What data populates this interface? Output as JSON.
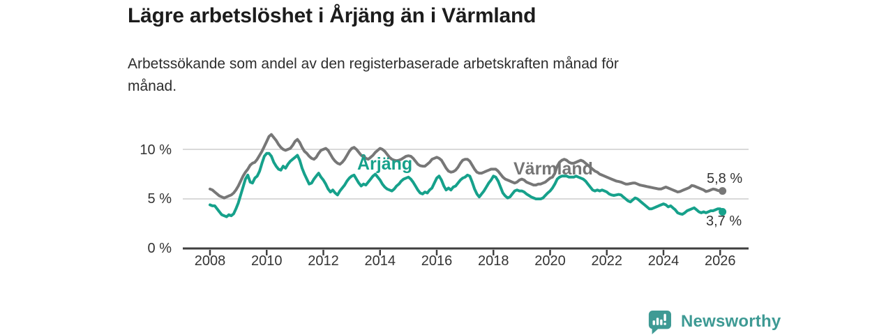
{
  "header": {
    "title": "Lägre arbetslöshet i Årjäng än i Värmland",
    "subtitle_lines": [
      "Arbetssökande som andel av den registerbaserade arbetskraften månad för",
      "månad."
    ]
  },
  "colors": {
    "arjang_line": "#16a18b",
    "varmland_line": "#777777",
    "gridline": "#d9d9d9",
    "axis": "#3f3f3f",
    "text": "#333333",
    "title_text": "#1c1c1c",
    "logo_teal": "#3e9a94"
  },
  "chart_data": {
    "type": "line",
    "title": "Lägre arbetslöshet i Årjäng än i Värmland",
    "subtitle": "Arbetssökande som andel av den registerbaserade arbetskraften månad för månad.",
    "x_unit": "month",
    "x_start": "2008-01",
    "x_end": "2026-02",
    "x_ticks": [
      "2008",
      "2010",
      "2012",
      "2014",
      "2016",
      "2018",
      "2020",
      "2022",
      "2024",
      "2026"
    ],
    "y_ticks": [
      "0 %",
      "5 %",
      "10 %"
    ],
    "ylim": [
      0,
      12.5
    ],
    "grid": "horizontal",
    "legend": "inline-labels",
    "series": [
      {
        "name": "Värmland",
        "color": "#777777",
        "end_label": "5,8 %",
        "end_value": 5.8,
        "values": [
          6.0,
          5.9,
          5.7,
          5.5,
          5.3,
          5.2,
          5.1,
          5.2,
          5.3,
          5.4,
          5.6,
          5.9,
          6.3,
          6.8,
          7.3,
          7.7,
          8.0,
          8.4,
          8.6,
          8.7,
          9.0,
          9.4,
          9.8,
          10.3,
          10.8,
          11.3,
          11.5,
          11.2,
          10.9,
          10.5,
          10.2,
          10.0,
          9.9,
          10.0,
          10.1,
          10.4,
          10.8,
          11.0,
          10.7,
          10.2,
          9.8,
          9.6,
          9.3,
          9.1,
          9.0,
          9.2,
          9.6,
          9.9,
          10.0,
          10.1,
          9.9,
          9.5,
          9.1,
          8.8,
          8.6,
          8.5,
          8.7,
          9.0,
          9.4,
          9.8,
          10.1,
          10.2,
          10.0,
          9.7,
          9.4,
          9.3,
          9.1,
          9.0,
          9.2,
          9.4,
          9.7,
          9.9,
          10.1,
          10.0,
          9.8,
          9.5,
          9.2,
          9.0,
          8.9,
          8.85,
          8.9,
          9.0,
          9.15,
          9.3,
          9.35,
          9.3,
          9.1,
          8.8,
          8.5,
          8.35,
          8.3,
          8.3,
          8.5,
          8.7,
          9.0,
          9.1,
          9.2,
          9.1,
          8.9,
          8.5,
          8.1,
          7.8,
          7.7,
          7.75,
          7.9,
          8.2,
          8.6,
          8.9,
          9.0,
          9.0,
          8.8,
          8.4,
          8.0,
          7.7,
          7.6,
          7.6,
          7.7,
          7.8,
          7.9,
          8.0,
          8.0,
          8.0,
          7.8,
          7.5,
          7.2,
          7.0,
          6.9,
          6.8,
          6.7,
          6.6,
          6.7,
          6.9,
          7.0,
          6.9,
          6.7,
          6.6,
          6.5,
          6.4,
          6.4,
          6.5,
          6.5,
          6.6,
          6.7,
          6.9,
          7.1,
          7.2,
          7.6,
          8.3,
          8.7,
          8.9,
          9.0,
          8.9,
          8.7,
          8.6,
          8.6,
          8.7,
          8.8,
          8.9,
          8.8,
          8.6,
          8.4,
          8.2,
          8.0,
          7.8,
          7.7,
          7.5,
          7.4,
          7.3,
          7.2,
          7.1,
          7.0,
          6.9,
          6.8,
          6.75,
          6.7,
          6.6,
          6.5,
          6.5,
          6.55,
          6.6,
          6.6,
          6.5,
          6.4,
          6.35,
          6.3,
          6.25,
          6.2,
          6.15,
          6.1,
          6.05,
          6.0,
          6.0,
          6.1,
          6.2,
          6.1,
          6.0,
          5.9,
          5.8,
          5.7,
          5.75,
          5.85,
          5.95,
          6.05,
          6.15,
          6.35,
          6.3,
          6.2,
          6.1,
          6.0,
          5.9,
          5.75,
          5.8,
          5.9,
          6.0,
          5.95,
          5.85,
          5.8,
          5.8
        ]
      },
      {
        "name": "Årjäng",
        "color": "#16a18b",
        "end_label": "3,7 %",
        "end_value": 3.7,
        "values": [
          4.4,
          4.3,
          4.3,
          4.0,
          3.7,
          3.4,
          3.3,
          3.2,
          3.4,
          3.3,
          3.5,
          4.0,
          4.6,
          5.4,
          6.2,
          7.0,
          7.4,
          6.7,
          6.6,
          7.1,
          7.3,
          7.8,
          8.6,
          9.3,
          9.6,
          9.6,
          9.3,
          8.7,
          8.3,
          8.0,
          7.9,
          8.3,
          8.1,
          8.5,
          8.8,
          9.0,
          9.2,
          9.4,
          8.9,
          8.1,
          7.5,
          7.0,
          6.5,
          6.6,
          7.0,
          7.3,
          7.6,
          7.2,
          6.9,
          6.5,
          6.0,
          5.7,
          5.9,
          5.6,
          5.4,
          5.8,
          6.1,
          6.4,
          6.8,
          7.1,
          7.3,
          7.4,
          7.0,
          6.6,
          6.3,
          6.5,
          6.4,
          6.7,
          7.0,
          7.3,
          7.5,
          7.2,
          6.9,
          6.5,
          6.2,
          6.0,
          5.9,
          5.8,
          6.0,
          6.3,
          6.5,
          6.8,
          7.0,
          7.1,
          7.2,
          7.0,
          6.7,
          6.3,
          5.9,
          5.6,
          5.5,
          5.7,
          5.6,
          5.9,
          6.1,
          6.6,
          7.1,
          7.3,
          6.9,
          6.3,
          5.9,
          6.1,
          5.9,
          6.2,
          6.3,
          6.6,
          6.9,
          7.1,
          7.2,
          7.4,
          7.3,
          6.7,
          6.0,
          5.5,
          5.2,
          5.5,
          5.8,
          6.2,
          6.6,
          6.9,
          7.3,
          7.2,
          6.8,
          6.2,
          5.6,
          5.3,
          5.1,
          5.2,
          5.5,
          5.8,
          5.9,
          5.8,
          5.8,
          5.7,
          5.5,
          5.35,
          5.2,
          5.1,
          5.0,
          5.0,
          5.0,
          5.1,
          5.35,
          5.6,
          5.8,
          6.1,
          6.5,
          7.0,
          7.2,
          7.3,
          7.3,
          7.3,
          7.2,
          7.2,
          7.2,
          7.3,
          7.2,
          7.1,
          7.0,
          6.8,
          6.5,
          6.2,
          5.9,
          5.8,
          5.9,
          5.8,
          5.9,
          5.8,
          5.7,
          5.5,
          5.4,
          5.35,
          5.4,
          5.45,
          5.4,
          5.2,
          5.0,
          4.8,
          4.7,
          4.9,
          5.1,
          5.0,
          4.8,
          4.6,
          4.4,
          4.2,
          4.0,
          4.0,
          4.1,
          4.2,
          4.3,
          4.4,
          4.5,
          4.4,
          4.2,
          4.3,
          4.1,
          3.9,
          3.6,
          3.5,
          3.45,
          3.6,
          3.8,
          3.9,
          4.0,
          4.1,
          3.9,
          3.7,
          3.6,
          3.7,
          3.6,
          3.7,
          3.8,
          3.8,
          3.9,
          4.0,
          4.0,
          3.7
        ]
      }
    ]
  },
  "branding": {
    "logo_text": "Newsworthy",
    "logo_icon": "newsworthy-speech-bubble-bar-chart-icon"
  }
}
